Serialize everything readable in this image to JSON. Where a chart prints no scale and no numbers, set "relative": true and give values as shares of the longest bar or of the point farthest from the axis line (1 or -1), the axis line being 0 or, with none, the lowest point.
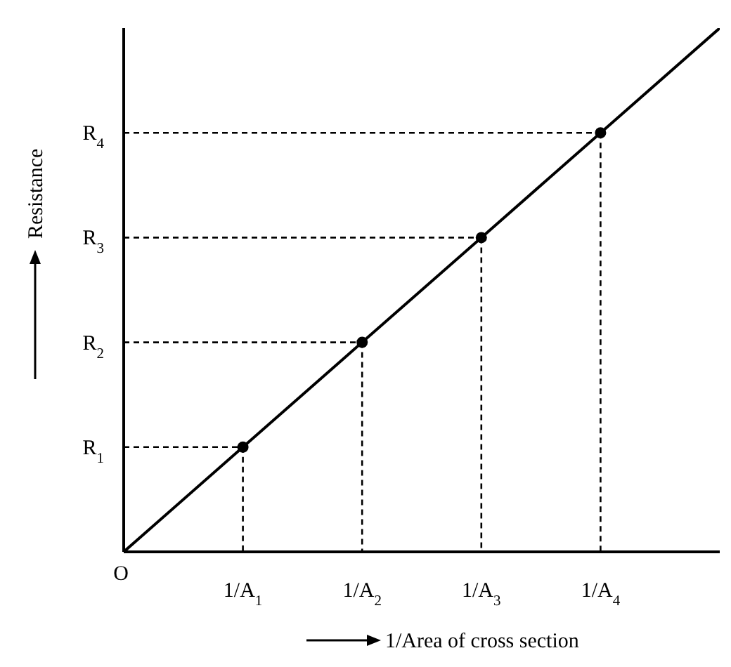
{
  "chart_data": {
    "type": "line",
    "relative": true,
    "xlabel": "1/Area of cross section",
    "ylabel": "Resistance",
    "categories": [
      null,
      "1/A$_{1}$",
      "1/A$_{2}$",
      "1/A$_{3}$",
      "1/A$_{4}$",
      null
    ],
    "series": [
      {
        "color": "#000000",
        "marker": "none",
        "values": [
          0,
          0.2,
          0.4,
          0.6,
          0.8,
          1
        ]
      },
      {
        "type": "scatter",
        "color": "#000000",
        "marker": "circle",
        "values": [
          null,
          0.2,
          0.4,
          0.6,
          0.8,
          null
        ]
      }
    ],
    "annotations": [
      "O",
      {
        "text": "R$_{1}$",
        "x": "1/A$_{1}$",
        "y": 0.2
      },
      {
        "text": "R$_{2}$",
        "x": "1/A$_{2}$",
        "y": 0.4
      },
      {
        "text": "R$_{3}$",
        "x": "1/A$_{3}$",
        "y": 0.6
      },
      {
        "text": "R$_{4}$",
        "x": "1/A$_{4}$",
        "y": 0.8
      }
    ]
  }
}
